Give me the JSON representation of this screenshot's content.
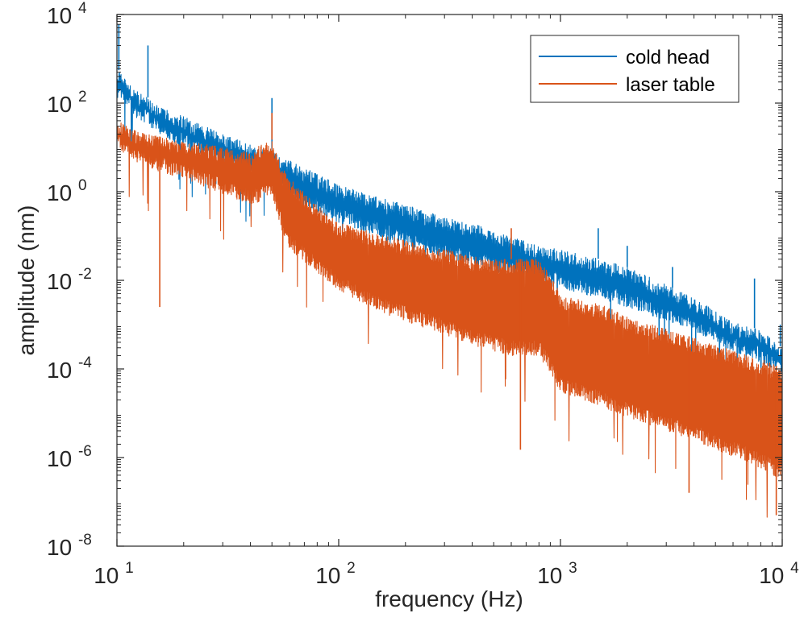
{
  "chart_data": {
    "type": "line",
    "title": "",
    "xlabel": "frequency (Hz)",
    "ylabel": "amplitude (nm)",
    "xscale": "log",
    "yscale": "log",
    "xlim": [
      10,
      10000
    ],
    "ylim": [
      1e-08,
      10000
    ],
    "grid": false,
    "legend_position": "top-right",
    "x_ticks": [
      {
        "value": 10,
        "base": "10",
        "exp": "1"
      },
      {
        "value": 100,
        "base": "10",
        "exp": "2"
      },
      {
        "value": 1000,
        "base": "10",
        "exp": "3"
      },
      {
        "value": 10000,
        "base": "10",
        "exp": "4"
      }
    ],
    "y_ticks": [
      {
        "value": 1e-08,
        "base": "10",
        "exp": "-8"
      },
      {
        "value": 1e-06,
        "base": "10",
        "exp": "-6"
      },
      {
        "value": 0.0001,
        "base": "10",
        "exp": "-4"
      },
      {
        "value": 0.01,
        "base": "10",
        "exp": "-2"
      },
      {
        "value": 1,
        "base": "10",
        "exp": "0"
      },
      {
        "value": 100,
        "base": "10",
        "exp": "2"
      },
      {
        "value": 10000,
        "base": "10",
        "exp": "4"
      }
    ],
    "series": [
      {
        "name": "cold head",
        "color": "#0072BD",
        "x": [
          10,
          11,
          12,
          13.5,
          15,
          20,
          30,
          40,
          50,
          60,
          80,
          100,
          150,
          200,
          300,
          400,
          500,
          600,
          800,
          1000,
          1200,
          1500,
          2000,
          2500,
          3000,
          4000,
          5000,
          6000,
          7000,
          7800,
          8500,
          9200,
          10000
        ],
        "upper": [
          600,
          400,
          220,
          150,
          90,
          50,
          20,
          12,
          8,
          5,
          2.5,
          1.4,
          0.8,
          0.5,
          0.28,
          0.2,
          0.12,
          0.1,
          0.06,
          0.05,
          0.04,
          0.03,
          0.02,
          0.012,
          0.008,
          0.004,
          0.002,
          0.0012,
          0.0009,
          0.0008,
          0.0006,
          0.0004,
          0.0003
        ],
        "lower": [
          120,
          80,
          50,
          35,
          22,
          10,
          4,
          2,
          1.2,
          0.7,
          0.35,
          0.2,
          0.1,
          0.06,
          0.03,
          0.022,
          0.015,
          0.012,
          0.008,
          0.007,
          0.005,
          0.004,
          0.0025,
          0.0017,
          0.0012,
          0.0007,
          0.0004,
          0.00025,
          0.00018,
          0.00015,
          0.00012,
          0.0001,
          8e-05
        ],
        "peaks": [
          {
            "x": 10.2,
            "y": 6000
          },
          {
            "x": 13.8,
            "y": 2000
          },
          {
            "x": 50,
            "y": 130
          },
          {
            "x": 1480,
            "y": 0.15
          },
          {
            "x": 2000,
            "y": 0.06
          },
          {
            "x": 3200,
            "y": 0.02
          },
          {
            "x": 7500,
            "y": 0.011
          },
          {
            "x": 9800,
            "y": 0.001
          }
        ]
      },
      {
        "name": "laser table",
        "color": "#D95319",
        "x": [
          10,
          12,
          15,
          20,
          30,
          40,
          45,
          50,
          55,
          60,
          80,
          100,
          150,
          200,
          300,
          400,
          500,
          600,
          800,
          900,
          1000,
          1500,
          2000,
          3000,
          4000,
          5000,
          7000,
          8500,
          10000
        ],
        "upper": [
          40,
          25,
          18,
          15,
          10,
          8,
          12,
          15,
          4,
          2,
          0.5,
          0.2,
          0.12,
          0.08,
          0.05,
          0.035,
          0.03,
          0.03,
          0.03,
          0.015,
          0.005,
          0.003,
          0.0015,
          0.0008,
          0.0005,
          0.00035,
          0.0002,
          0.00015,
          0.0001
        ],
        "lower": [
          10,
          5,
          3,
          2,
          0.9,
          0.5,
          0.6,
          0.8,
          0.15,
          0.05,
          0.015,
          0.006,
          0.002,
          0.0012,
          0.0006,
          0.00035,
          0.00025,
          0.0002,
          0.0002,
          8e-05,
          3e-05,
          1.5e-05,
          8e-06,
          4e-06,
          2.5e-06,
          1.5e-06,
          8e-07,
          5e-07,
          3e-07
        ],
        "peaks": [
          {
            "x": 15.6,
            "y": 0.0025
          },
          {
            "x": 50,
            "y": 60
          },
          {
            "x": 600,
            "y": 0.15
          },
          {
            "x": 660,
            "y": 1.5e-06
          },
          {
            "x": 3800,
            "y": 1.6e-07
          },
          {
            "x": 9400,
            "y": 5e-08
          }
        ]
      }
    ]
  }
}
